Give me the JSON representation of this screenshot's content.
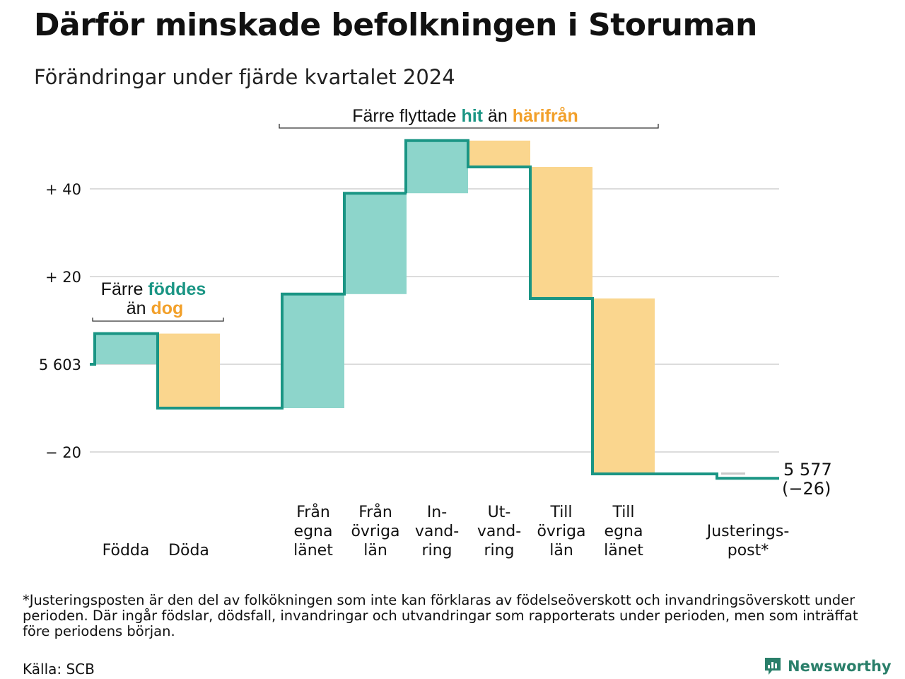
{
  "header": {
    "title": "Därför minskade befolkningen i Storuman",
    "subtitle": "Förändringar under fjärde kvartalet 2024"
  },
  "colors": {
    "increase": "#8dd5cb",
    "decrease": "#fad68e",
    "line": "#1a9584",
    "adjustment": "#c8c8c8",
    "grid": "#dcdcdc",
    "teal_text": "#1a9584",
    "orange_text": "#f2a02a"
  },
  "annotations": {
    "births": {
      "line1_pre": "Färre ",
      "line1_hl": "föddes",
      "line2_pre": "än ",
      "line2_hl": "dog"
    },
    "migration": {
      "pre": "Färre flyttade ",
      "hl1": "hit",
      "mid": " än ",
      "hl2": "härifrån"
    }
  },
  "end_label": {
    "value": "5 577",
    "change": "(−26)"
  },
  "chart_data": {
    "type": "waterfall",
    "start_value": 5603,
    "end_value": 5577,
    "net_change": -26,
    "y_tick_labels": [
      "+ 40",
      "+ 20",
      "5 603",
      "− 20"
    ],
    "y_tick_values": [
      40,
      20,
      0,
      -20
    ],
    "ylim": [
      -26,
      52
    ],
    "grid": true,
    "categories": [
      {
        "key": "fodda",
        "label": [
          "Födda"
        ],
        "value": 7,
        "kind": "increase"
      },
      {
        "key": "doda",
        "label": [
          "Döda"
        ],
        "value": -17,
        "kind": "decrease"
      },
      {
        "key": "fran_egna",
        "label": [
          "Från",
          "egna",
          "länet"
        ],
        "value": 26,
        "kind": "increase"
      },
      {
        "key": "fran_ovriga",
        "label": [
          "Från",
          "övriga",
          "län"
        ],
        "value": 23,
        "kind": "increase"
      },
      {
        "key": "invandring",
        "label": [
          "In-",
          "vand-",
          "ring"
        ],
        "value": 12,
        "kind": "increase"
      },
      {
        "key": "utvandring",
        "label": [
          "Ut-",
          "vand-",
          "ring"
        ],
        "value": -6,
        "kind": "decrease"
      },
      {
        "key": "till_ovriga",
        "label": [
          "Till",
          "övriga",
          "län"
        ],
        "value": -30,
        "kind": "decrease"
      },
      {
        "key": "till_egna",
        "label": [
          "Till",
          "egna",
          "länet"
        ],
        "value": -40,
        "kind": "decrease"
      },
      {
        "key": "justering",
        "label": [
          "Justerings-",
          "post*"
        ],
        "value": -1,
        "kind": "adjustment"
      }
    ]
  },
  "footnote": "*Justeringsposten är den del av folkökningen som inte kan förklaras av födelseöverskott och invandringsöverskott under perioden. Där ingår födslar, dödsfall, invandringar och utvandringar som rapporterats under perioden, men som inträffat före periodens början.",
  "source": "Källa: SCB",
  "logo": {
    "name": "Newsworthy",
    "icon": "newsworthy-logo-icon"
  }
}
